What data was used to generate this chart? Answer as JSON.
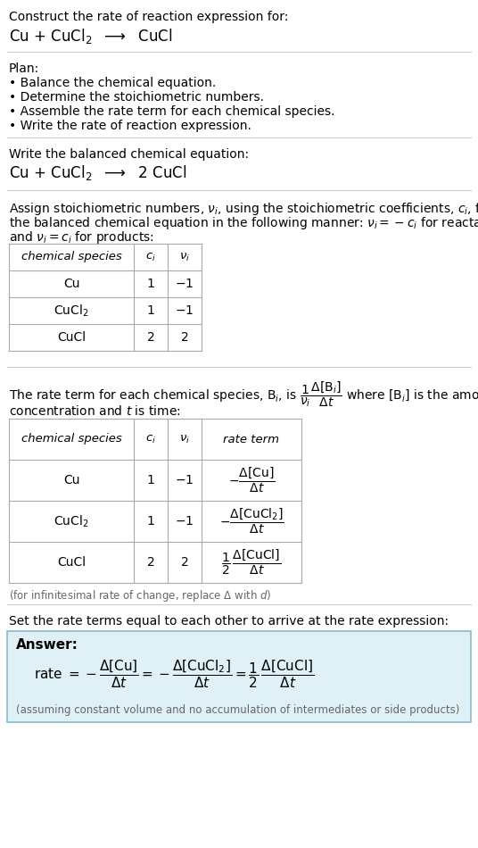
{
  "bg_color": "#ffffff",
  "answer_bg": "#dff0f7",
  "answer_border": "#88bbcc",
  "text_color": "#000000",
  "gray_text": "#666666",
  "table_line_color": "#aaaaaa",
  "fig_width": 5.36,
  "fig_height": 9.5,
  "title_text": "Construct the rate of reaction expression for:",
  "reaction_unbalanced": "Cu + CuCl$_2$  $\\longrightarrow$  CuCl",
  "plan_header": "Plan:",
  "plan_bullets": [
    "• Balance the chemical equation.",
    "• Determine the stoichiometric numbers.",
    "• Assemble the rate term for each chemical species.",
    "• Write the rate of reaction expression."
  ],
  "balanced_header": "Write the balanced chemical equation:",
  "reaction_balanced": "Cu + CuCl$_2$  $\\longrightarrow$  2 CuCl",
  "stoich_intro_line1": "Assign stoichiometric numbers, $\\nu_i$, using the stoichiometric coefficients, $c_i$, from",
  "stoich_intro_line2": "the balanced chemical equation in the following manner: $\\nu_i = -c_i$ for reactants",
  "stoich_intro_line3": "and $\\nu_i = c_i$ for products:",
  "table1_headers": [
    "chemical species",
    "$c_i$",
    "$\\nu_i$"
  ],
  "table1_rows": [
    [
      "Cu",
      "1",
      "$-1$"
    ],
    [
      "CuCl$_2$",
      "1",
      "$-1$"
    ],
    [
      "CuCl",
      "2",
      "2"
    ]
  ],
  "rate_intro_line1": "The rate term for each chemical species, B$_i$, is $\\dfrac{1}{\\nu_i}\\dfrac{\\Delta[\\mathrm{B}_i]}{\\Delta t}$ where [B$_i$] is the amount",
  "rate_intro_line2": "concentration and $t$ is time:",
  "table2_headers": [
    "chemical species",
    "$c_i$",
    "$\\nu_i$",
    "rate term"
  ],
  "table2_rows": [
    [
      "Cu",
      "1",
      "$-1$",
      "$-\\dfrac{\\Delta[\\mathrm{Cu}]}{\\Delta t}$"
    ],
    [
      "CuCl$_2$",
      "1",
      "$-1$",
      "$-\\dfrac{\\Delta[\\mathrm{CuCl_2}]}{\\Delta t}$"
    ],
    [
      "CuCl",
      "2",
      "2",
      "$\\dfrac{1}{2}\\,\\dfrac{\\Delta[\\mathrm{CuCl}]}{\\Delta t}$"
    ]
  ],
  "infinitesimal_note": "(for infinitesimal rate of change, replace Δ with $d$)",
  "set_equal_text": "Set the rate terms equal to each other to arrive at the rate expression:",
  "answer_label": "Answer:",
  "answer_eq": "rate $= -\\dfrac{\\Delta[\\mathrm{Cu}]}{\\Delta t} = -\\dfrac{\\Delta[\\mathrm{CuCl_2}]}{\\Delta t} = \\dfrac{1}{2}\\,\\dfrac{\\Delta[\\mathrm{CuCl}]}{\\Delta t}$",
  "answer_note": "(assuming constant volume and no accumulation of intermediates or side products)"
}
